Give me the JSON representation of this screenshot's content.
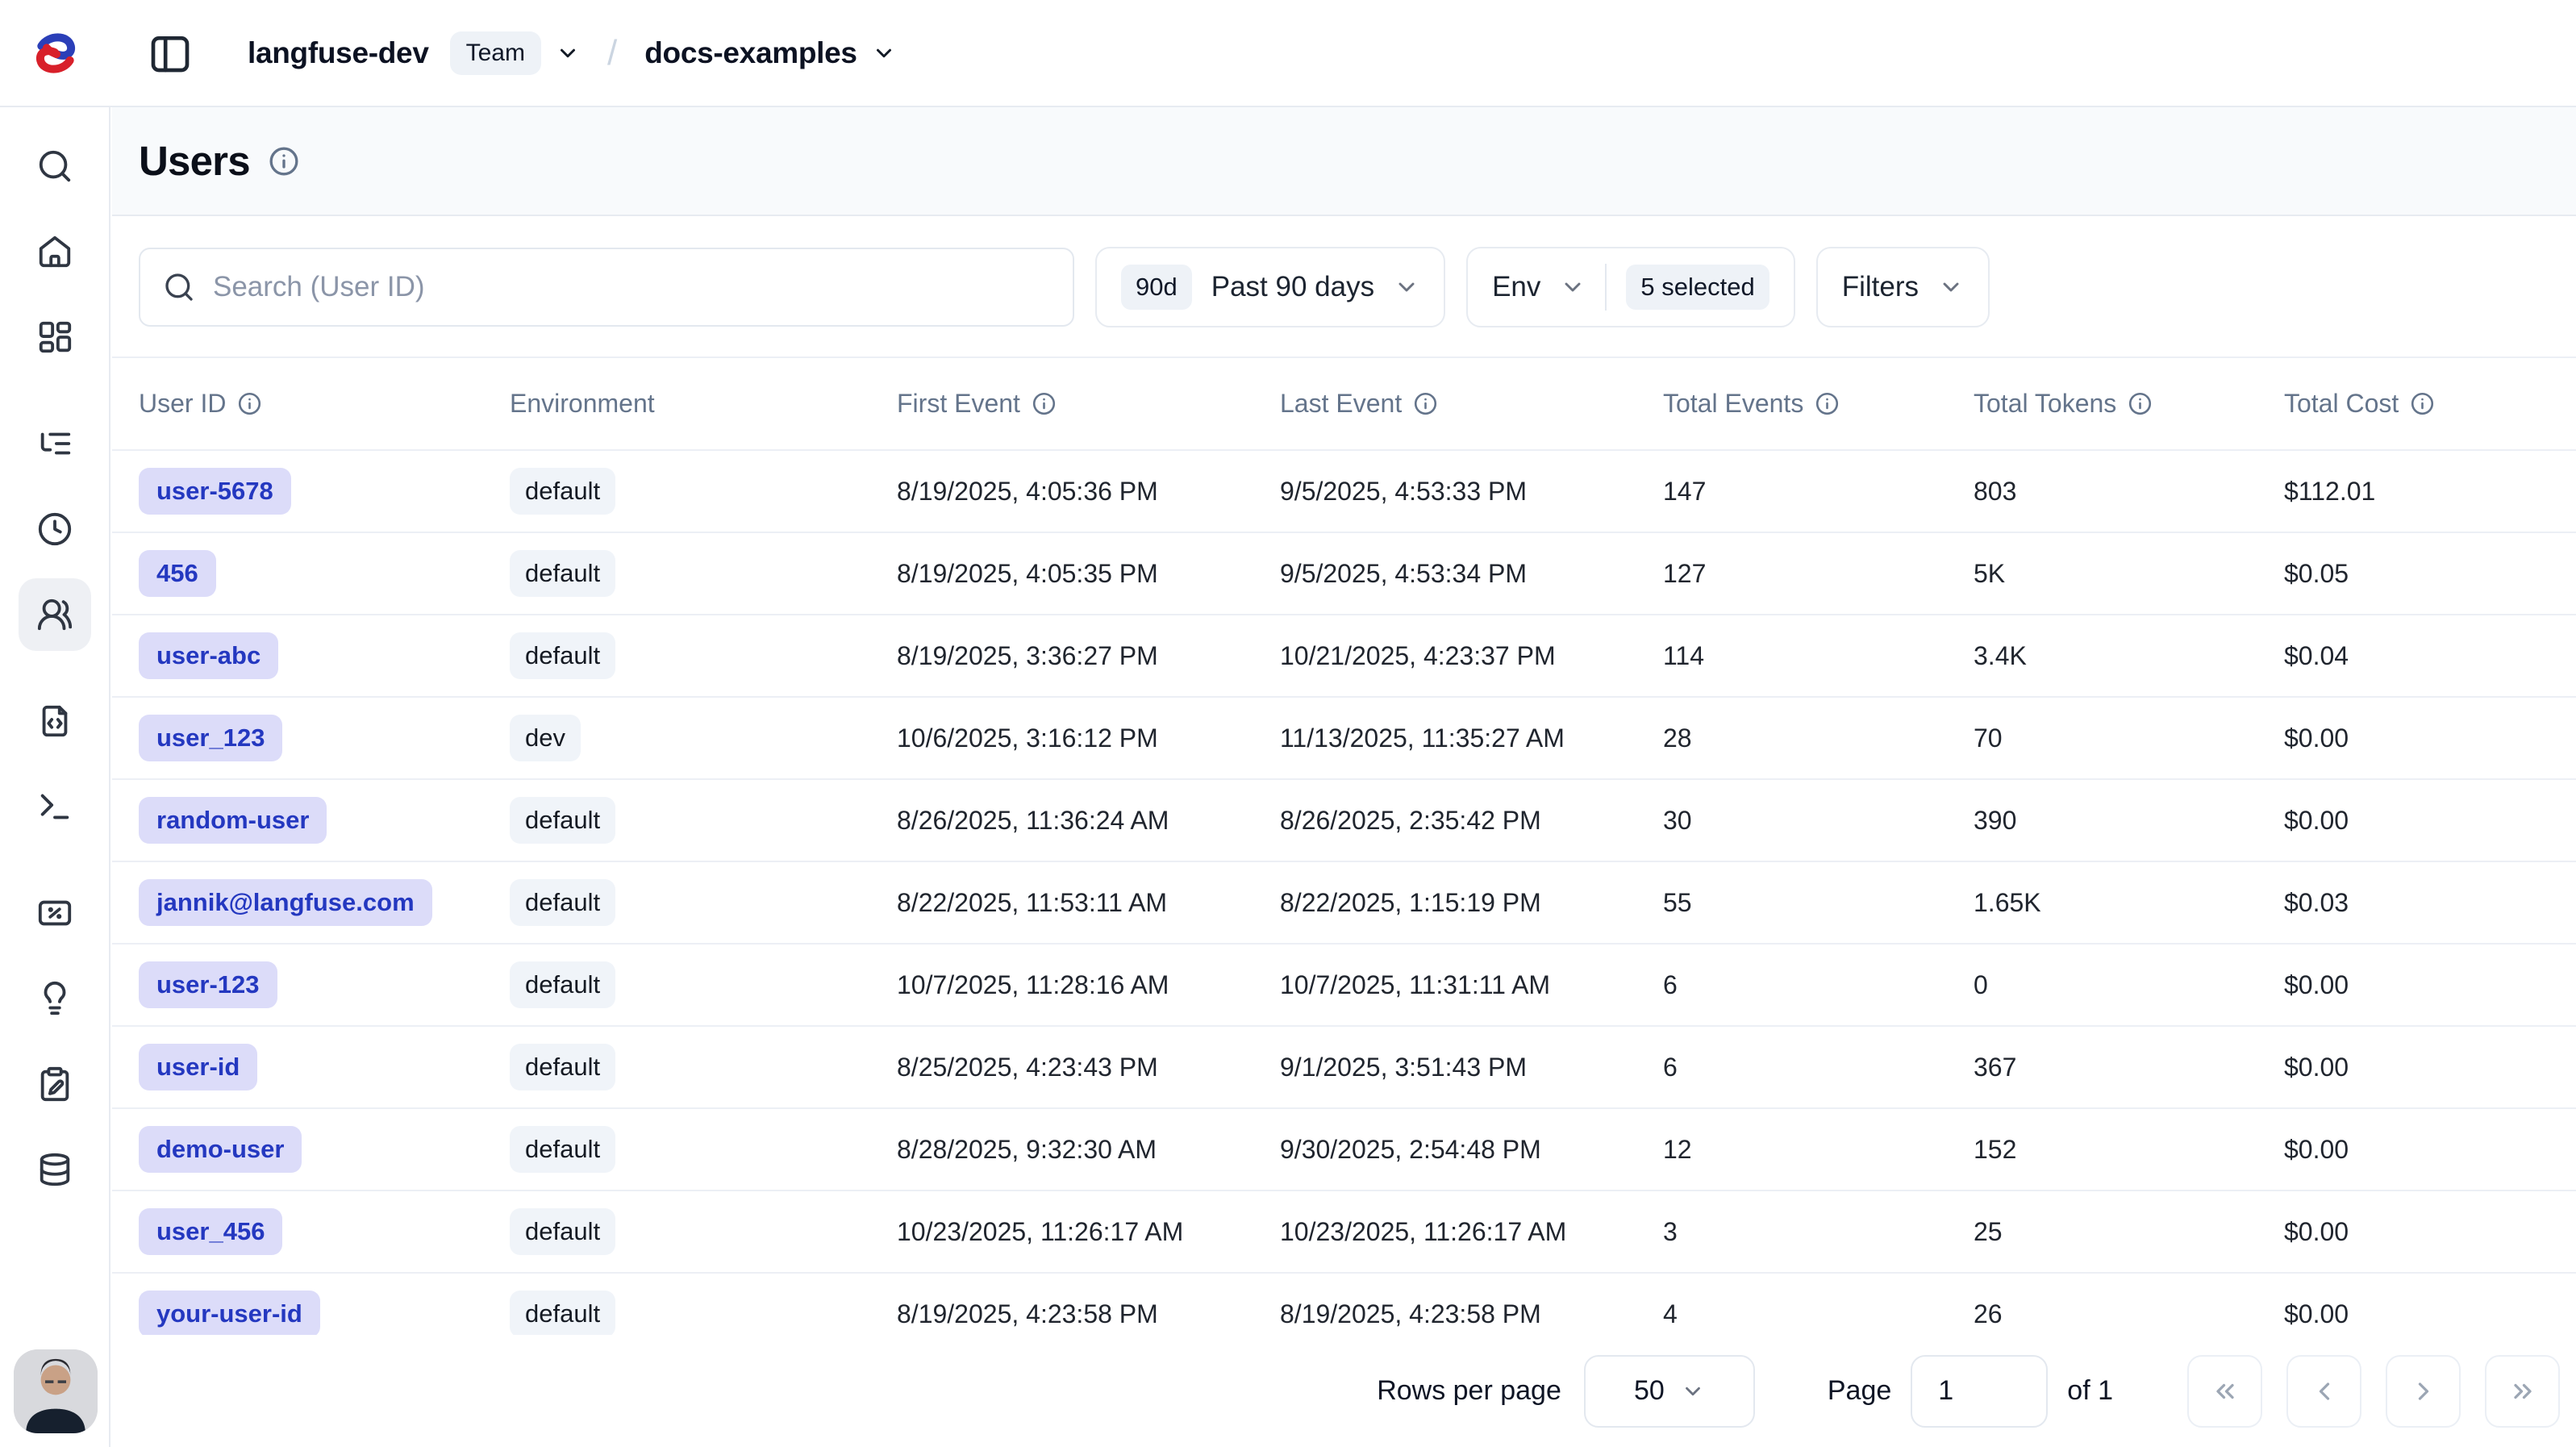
{
  "header": {
    "org": "langfuse-dev",
    "org_badge": "Team",
    "separator": "/",
    "project": "docs-examples"
  },
  "sidebar": {
    "items": [
      {
        "icon": "search-icon",
        "active": false
      },
      {
        "icon": "home-icon",
        "active": false
      },
      {
        "icon": "dashboard-grid-icon",
        "active": false
      },
      {
        "icon": "tracing-tree-icon",
        "active": false
      },
      {
        "icon": "sessions-clock-icon",
        "active": false
      },
      {
        "icon": "users-icon",
        "active": true
      },
      {
        "icon": "prompts-file-code-icon",
        "active": false
      },
      {
        "icon": "playground-terminal-icon",
        "active": false
      },
      {
        "icon": "scores-percent-icon",
        "active": false
      },
      {
        "icon": "insights-lightbulb-icon",
        "active": false
      },
      {
        "icon": "annotation-clipboard-pen-icon",
        "active": false
      },
      {
        "icon": "datasets-database-icon",
        "active": false
      }
    ]
  },
  "page": {
    "title": "Users"
  },
  "toolbar": {
    "search_placeholder": "Search (User ID)",
    "time_range": {
      "tag": "90d",
      "label": "Past 90 days"
    },
    "env_filter": {
      "label": "Env",
      "selected_badge": "5 selected"
    },
    "filters_label": "Filters"
  },
  "table": {
    "columns": [
      {
        "label": "User ID",
        "info": true
      },
      {
        "label": "Environment",
        "info": false
      },
      {
        "label": "First Event",
        "info": true
      },
      {
        "label": "Last Event",
        "info": true
      },
      {
        "label": "Total Events",
        "info": true
      },
      {
        "label": "Total Tokens",
        "info": true
      },
      {
        "label": "Total Cost",
        "info": true
      }
    ],
    "rows": [
      {
        "user_id": "user-5678",
        "environment": "default",
        "first_event": "8/19/2025, 4:05:36 PM",
        "last_event": "9/5/2025, 4:53:33 PM",
        "total_events": "147",
        "total_tokens": "803",
        "total_cost": "$112.01"
      },
      {
        "user_id": "456",
        "environment": "default",
        "first_event": "8/19/2025, 4:05:35 PM",
        "last_event": "9/5/2025, 4:53:34 PM",
        "total_events": "127",
        "total_tokens": "5K",
        "total_cost": "$0.05"
      },
      {
        "user_id": "user-abc",
        "environment": "default",
        "first_event": "8/19/2025, 3:36:27 PM",
        "last_event": "10/21/2025, 4:23:37 PM",
        "total_events": "114",
        "total_tokens": "3.4K",
        "total_cost": "$0.04"
      },
      {
        "user_id": "user_123",
        "environment": "dev",
        "first_event": "10/6/2025, 3:16:12 PM",
        "last_event": "11/13/2025, 11:35:27 AM",
        "total_events": "28",
        "total_tokens": "70",
        "total_cost": "$0.00"
      },
      {
        "user_id": "random-user",
        "environment": "default",
        "first_event": "8/26/2025, 11:36:24 AM",
        "last_event": "8/26/2025, 2:35:42 PM",
        "total_events": "30",
        "total_tokens": "390",
        "total_cost": "$0.00"
      },
      {
        "user_id": "jannik@langfuse.com",
        "environment": "default",
        "first_event": "8/22/2025, 11:53:11 AM",
        "last_event": "8/22/2025, 1:15:19 PM",
        "total_events": "55",
        "total_tokens": "1.65K",
        "total_cost": "$0.03"
      },
      {
        "user_id": "user-123",
        "environment": "default",
        "first_event": "10/7/2025, 11:28:16 AM",
        "last_event": "10/7/2025, 11:31:11 AM",
        "total_events": "6",
        "total_tokens": "0",
        "total_cost": "$0.00"
      },
      {
        "user_id": "user-id",
        "environment": "default",
        "first_event": "8/25/2025, 4:23:43 PM",
        "last_event": "9/1/2025, 3:51:43 PM",
        "total_events": "6",
        "total_tokens": "367",
        "total_cost": "$0.00"
      },
      {
        "user_id": "demo-user",
        "environment": "default",
        "first_event": "8/28/2025, 9:32:30 AM",
        "last_event": "9/30/2025, 2:54:48 PM",
        "total_events": "12",
        "total_tokens": "152",
        "total_cost": "$0.00"
      },
      {
        "user_id": "user_456",
        "environment": "default",
        "first_event": "10/23/2025, 11:26:17 AM",
        "last_event": "10/23/2025, 11:26:17 AM",
        "total_events": "3",
        "total_tokens": "25",
        "total_cost": "$0.00"
      },
      {
        "user_id": "your-user-id",
        "environment": "default",
        "first_event": "8/19/2025, 4:23:58 PM",
        "last_event": "8/19/2025, 4:23:58 PM",
        "total_events": "4",
        "total_tokens": "26",
        "total_cost": "$0.00"
      }
    ]
  },
  "pagination": {
    "rows_per_page_label": "Rows per page",
    "rows_per_page_value": "50",
    "page_label": "Page",
    "page_value": "1",
    "total_label": "of 1"
  },
  "colors": {
    "user_badge_bg": "#dcdcf9",
    "user_badge_text": "#2438c0",
    "env_badge_bg": "#f0f4f9",
    "border": "#e7ebf1",
    "muted_text": "#64748b",
    "title_bar_bg": "#f8fafc"
  }
}
